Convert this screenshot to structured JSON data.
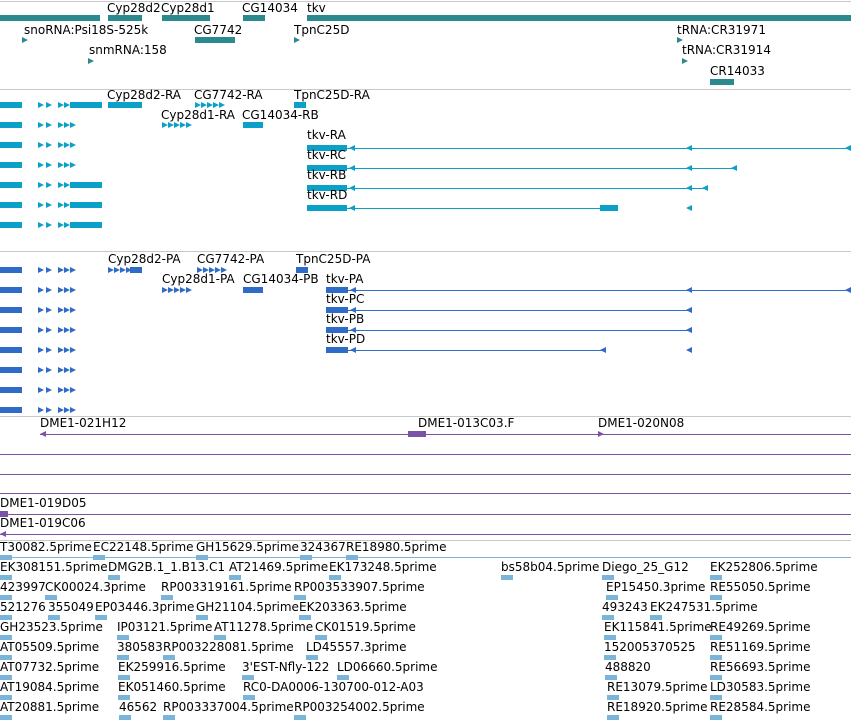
{
  "colors": {
    "gene": "#2a8a90",
    "mrna_cds": "#0aa0c8",
    "protein": "#2f6cc8",
    "clone": "#7a52a6",
    "est": "#7ab4d8",
    "separator": "#c8c8c8"
  },
  "tracks": {
    "genes": {
      "labels": [
        "Cyp28d2",
        "Cyp28d1",
        "CG14034",
        "tkv",
        "snoRNA:Psi18S-525k",
        "CG7742",
        "TpnC25D",
        "tRNA:CR31971",
        "snmRNA:158",
        "tRNA:CR31914",
        "CR14033"
      ]
    },
    "transcripts": {
      "labels": [
        "Cyp28d2-RA",
        "CG7742-RA",
        "TpnC25D-RA",
        "Cyp28d1-RA",
        "CG14034-RB",
        "tkv-RA",
        "tkv-RC",
        "tkv-RB",
        "tkv-RD"
      ]
    },
    "proteins": {
      "labels": [
        "Cyp28d2-PA",
        "CG7742-PA",
        "TpnC25D-PA",
        "Cyp28d1-PA",
        "CG14034-PB",
        "tkv-PA",
        "tkv-PC",
        "tkv-PB",
        "tkv-PD"
      ]
    },
    "clones": {
      "labels": [
        "DME1-021H12",
        "DME1-013C03.F",
        "DME1-020N08",
        "DME1-019D05",
        "DME1-019C06"
      ]
    },
    "ests": {
      "labels": [
        "T30082.5prime",
        "EC22148.5prime",
        "GH15629.5prime",
        "324367",
        "RE18980.5prime",
        "EK308151.5prime",
        "DMG2B.1_1.B13.C1",
        "AT21469.5prime",
        "EK173248.5prime",
        "bs58b04.5prime",
        "Diego_25_G12",
        "EK252806.5prime",
        "423997",
        "CK00024.3prime",
        "RP003319161.5prime",
        "RP003533907.5prime",
        "EP15450.3prime",
        "RE55050.5prime",
        "521276",
        "355049",
        "EP03446.3prime",
        "GH21104.5prime",
        "EK203363.5prime",
        "493243",
        "EK247531.5prime",
        "GH23523.5prime",
        "IP03121.5prime",
        "AT11278.5prime",
        "CK01519.5prime",
        "EK115841.5prime",
        "RE49269.5prime",
        "AT05509.5prime",
        "380583",
        "RP003228081.5prime",
        "LD45557.3prime",
        "152005370525",
        "RE51169.5prime",
        "AT07732.5prime",
        "EK259916.5prime",
        "3'EST-Nfly-122",
        "LD06660.5prime",
        "488820",
        "RE56693.5prime",
        "AT19084.5prime",
        "EK051460.5prime",
        "RC0-DA0006-130700-012-A03",
        "RE13079.5prime",
        "LD30583.5prime",
        "AT20881.5prime",
        "46562",
        "RP003337004.5prime",
        "RP003254002.5prime",
        "RE18920.5prime",
        "RE28584.5prime"
      ]
    }
  }
}
